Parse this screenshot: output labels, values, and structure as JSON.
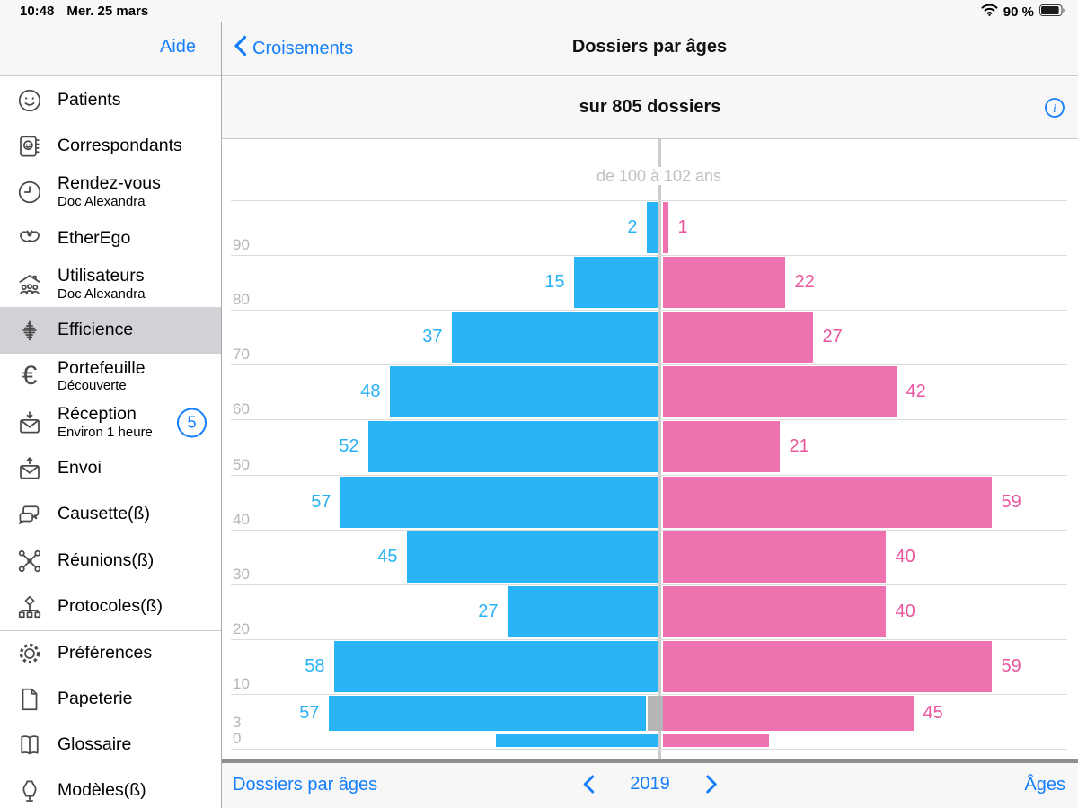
{
  "status_bar": {
    "time": "10:48",
    "date": "Mer. 25 mars",
    "battery_percent": "90 %"
  },
  "sidebar": {
    "help_label": "Aide",
    "items": [
      {
        "label": "Patients",
        "icon": "patients"
      },
      {
        "label": "Correspondants",
        "icon": "correspondants"
      },
      {
        "label": "Rendez-vous",
        "subtitle": "Doc Alexandra",
        "icon": "rendez-vous"
      },
      {
        "label": "EtherEgo",
        "icon": "etherego"
      },
      {
        "label": "Utilisateurs",
        "subtitle": "Doc Alexandra",
        "icon": "utilisateurs"
      },
      {
        "label": "Efficience",
        "icon": "efficience",
        "selected": true
      },
      {
        "label": "Portefeuille",
        "subtitle": "Découverte",
        "icon": "portefeuille"
      },
      {
        "label": "Réception",
        "subtitle": "Environ 1 heure",
        "icon": "reception",
        "badge": "5"
      },
      {
        "label": "Envoi",
        "icon": "envoi"
      },
      {
        "label": "Causette(ß)",
        "icon": "causette"
      },
      {
        "label": "Réunions(ß)",
        "icon": "reunions"
      },
      {
        "label": "Protocoles(ß)",
        "icon": "protocoles"
      },
      {
        "label": "Préférences",
        "icon": "preferences",
        "section_start": true
      },
      {
        "label": "Papeterie",
        "icon": "papeterie"
      },
      {
        "label": "Glossaire",
        "icon": "glossaire"
      },
      {
        "label": "Modèles(ß)",
        "icon": "modeles"
      }
    ]
  },
  "header": {
    "back_label": "Croisements",
    "title": "Dossiers par âges"
  },
  "subheader": {
    "text": "sur 805 dossiers"
  },
  "footer": {
    "left_label": "Dossiers par âges",
    "year": "2019",
    "right_label": "Âges"
  },
  "chart_data": {
    "type": "bar",
    "subtype": "population-pyramid",
    "title": "Dossiers par âges",
    "subtitle": "sur 805 dossiers",
    "total": 805,
    "year": "2019",
    "orientation": "horizontal, mirrored around center axis (blue bars left, pink bars right)",
    "colors": {
      "blue": "#29b4f8",
      "pink": "#ee72b0",
      "gray": "#b5b5b7",
      "accent_blue": "#157efb"
    },
    "ticks": [
      {
        "age": 100,
        "label": ""
      },
      {
        "age": 90,
        "label": "90"
      },
      {
        "age": 80,
        "label": "80"
      },
      {
        "age": 70,
        "label": "70"
      },
      {
        "age": 60,
        "label": "60"
      },
      {
        "age": 50,
        "label": "50"
      },
      {
        "age": 40,
        "label": "40"
      },
      {
        "age": 30,
        "label": "30"
      },
      {
        "age": 20,
        "label": "20"
      },
      {
        "age": 10,
        "label": "10"
      },
      {
        "age": 3,
        "label": "3"
      },
      {
        "age": 0,
        "label": "0"
      }
    ],
    "bands": [
      {
        "age_from": 100,
        "age_to": 102,
        "blue": 0,
        "pink": 0,
        "blue_label": "",
        "pink_label": "",
        "range_label": "de 100 à 102 ans"
      },
      {
        "age_from": 90,
        "age_to": 100,
        "blue": 2,
        "pink": 1,
        "blue_label": "2",
        "pink_label": "1"
      },
      {
        "age_from": 80,
        "age_to": 90,
        "blue": 15,
        "pink": 22,
        "blue_label": "15",
        "pink_label": "22"
      },
      {
        "age_from": 70,
        "age_to": 80,
        "blue": 37,
        "pink": 27,
        "blue_label": "37",
        "pink_label": "27"
      },
      {
        "age_from": 60,
        "age_to": 70,
        "blue": 48,
        "pink": 42,
        "blue_label": "48",
        "pink_label": "42"
      },
      {
        "age_from": 50,
        "age_to": 60,
        "blue": 52,
        "pink": 21,
        "blue_label": "52",
        "pink_label": "21"
      },
      {
        "age_from": 40,
        "age_to": 50,
        "blue": 57,
        "pink": 59,
        "blue_label": "57",
        "pink_label": "59"
      },
      {
        "age_from": 30,
        "age_to": 40,
        "blue": 45,
        "pink": 40,
        "blue_label": "45",
        "pink_label": "40"
      },
      {
        "age_from": 20,
        "age_to": 30,
        "blue": 27,
        "pink": 40,
        "blue_label": "27",
        "pink_label": "40"
      },
      {
        "age_from": 10,
        "age_to": 20,
        "blue": 58,
        "pink": 59,
        "blue_label": "58",
        "pink_label": "59"
      },
      {
        "age_from": 3,
        "age_to": 10,
        "blue": 57,
        "pink": 45,
        "blue_label": "57",
        "pink_label": "45",
        "gray": 3
      },
      {
        "age_from": 0,
        "age_to": 3,
        "blue": 29,
        "pink": 19,
        "blue_label": "",
        "pink_label": ""
      }
    ]
  }
}
